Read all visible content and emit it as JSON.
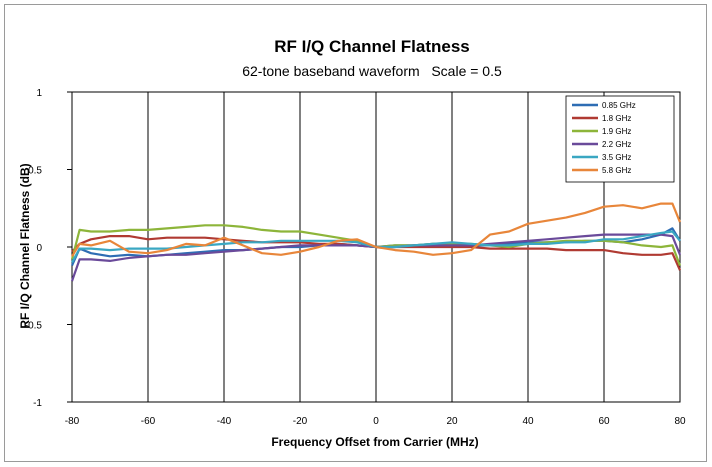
{
  "chart_data": {
    "type": "line",
    "title": "RF I/Q Channel Flatness",
    "subtitle": "62-tone baseband waveform   Scale = 0.5",
    "xlabel": "Frequency Offset from Carrier (MHz)",
    "ylabel": "RF I/Q Channel Flatness (dB)",
    "xlim": [
      -80,
      80
    ],
    "ylim": [
      -1,
      1
    ],
    "x_ticks": [
      -80,
      -60,
      -40,
      -20,
      0,
      20,
      40,
      60,
      80
    ],
    "y_ticks": [
      -1,
      -0.5,
      0,
      0.5,
      1
    ],
    "x_tick_labels": [
      "-80",
      "-60",
      "-40",
      "-20",
      "0",
      "20",
      "40",
      "60",
      "80"
    ],
    "y_tick_labels": [
      "-1",
      "-0.5",
      "0",
      "0.5",
      "1"
    ],
    "grid": "vertical",
    "legend_position": "top-right",
    "x": [
      -80,
      -78,
      -75,
      -70,
      -65,
      -60,
      -55,
      -50,
      -45,
      -40,
      -35,
      -30,
      -25,
      -20,
      -15,
      -10,
      -5,
      0,
      5,
      10,
      15,
      20,
      25,
      30,
      35,
      40,
      45,
      50,
      55,
      60,
      65,
      70,
      75,
      78,
      80
    ],
    "series": [
      {
        "name": "0.85 GHz",
        "color": "#2e6db4",
        "values": [
          -0.12,
          -0.01,
          -0.04,
          -0.06,
          -0.05,
          -0.06,
          -0.05,
          -0.04,
          -0.03,
          -0.02,
          -0.02,
          -0.01,
          0.0,
          0.0,
          0.01,
          0.02,
          0.01,
          0.0,
          0.01,
          0.01,
          0.02,
          0.02,
          0.01,
          0.01,
          0.02,
          0.03,
          0.03,
          0.03,
          0.04,
          0.04,
          0.03,
          0.05,
          0.08,
          0.12,
          0.04
        ]
      },
      {
        "name": "1.8 GHz",
        "color": "#b03a32",
        "values": [
          -0.03,
          0.02,
          0.05,
          0.07,
          0.07,
          0.05,
          0.06,
          0.06,
          0.06,
          0.05,
          0.04,
          0.03,
          0.03,
          0.03,
          0.02,
          0.02,
          0.01,
          0.0,
          0.0,
          0.0,
          0.0,
          0.0,
          0.0,
          -0.01,
          -0.01,
          -0.01,
          -0.01,
          -0.02,
          -0.02,
          -0.02,
          -0.04,
          -0.05,
          -0.05,
          -0.04,
          -0.15
        ]
      },
      {
        "name": "1.9 GHz",
        "color": "#8db53a",
        "values": [
          -0.08,
          0.11,
          0.1,
          0.1,
          0.11,
          0.11,
          0.12,
          0.13,
          0.14,
          0.14,
          0.13,
          0.11,
          0.1,
          0.1,
          0.08,
          0.06,
          0.04,
          0.0,
          0.01,
          0.01,
          0.02,
          0.02,
          0.02,
          0.01,
          0.0,
          0.02,
          0.03,
          0.04,
          0.04,
          0.04,
          0.03,
          0.01,
          0.0,
          0.01,
          -0.12
        ]
      },
      {
        "name": "2.2 GHz",
        "color": "#6a4a9a",
        "values": [
          -0.22,
          -0.08,
          -0.08,
          -0.09,
          -0.07,
          -0.06,
          -0.05,
          -0.05,
          -0.04,
          -0.03,
          -0.02,
          -0.01,
          0.0,
          0.01,
          0.01,
          0.01,
          0.01,
          0.0,
          0.0,
          0.01,
          0.01,
          0.01,
          0.01,
          0.02,
          0.03,
          0.04,
          0.05,
          0.06,
          0.07,
          0.08,
          0.08,
          0.08,
          0.08,
          0.07,
          -0.05
        ]
      },
      {
        "name": "3.5 GHz",
        "color": "#3aa7c2",
        "values": [
          -0.1,
          -0.01,
          -0.01,
          -0.02,
          -0.01,
          -0.01,
          -0.01,
          0.0,
          0.01,
          0.02,
          0.03,
          0.03,
          0.04,
          0.04,
          0.04,
          0.04,
          0.03,
          0.0,
          0.0,
          0.01,
          0.02,
          0.03,
          0.02,
          0.01,
          0.01,
          0.02,
          0.02,
          0.03,
          0.03,
          0.05,
          0.05,
          0.07,
          0.09,
          0.1,
          0.04
        ]
      },
      {
        "name": "5.8 GHz",
        "color": "#e8863a",
        "values": [
          -0.06,
          0.02,
          0.01,
          0.04,
          -0.03,
          -0.04,
          -0.02,
          0.02,
          0.01,
          0.06,
          0.01,
          -0.04,
          -0.05,
          -0.03,
          0.0,
          0.04,
          0.05,
          0.0,
          -0.02,
          -0.03,
          -0.05,
          -0.04,
          -0.02,
          0.08,
          0.1,
          0.15,
          0.17,
          0.19,
          0.22,
          0.26,
          0.27,
          0.25,
          0.28,
          0.28,
          0.16
        ]
      }
    ]
  }
}
